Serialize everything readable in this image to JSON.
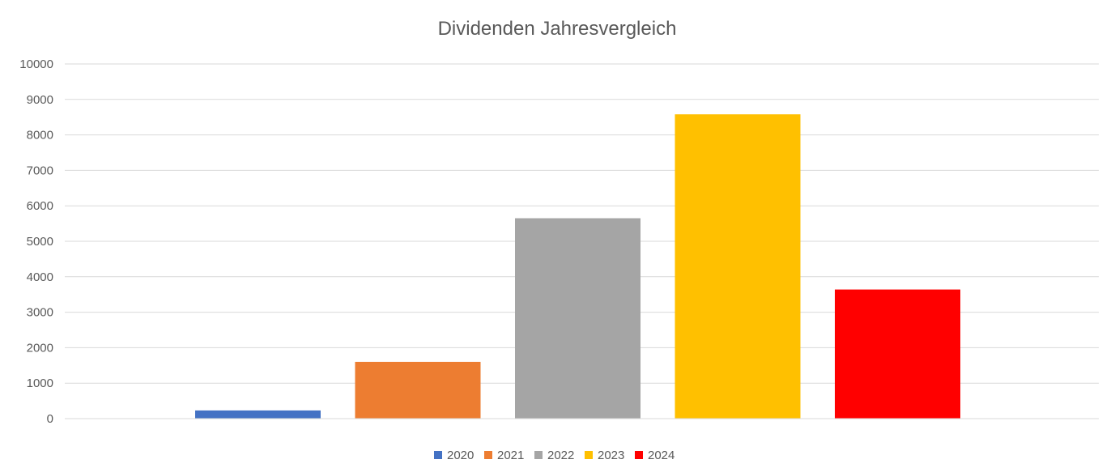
{
  "chart_data": {
    "type": "bar",
    "title": "Dividenden Jahresvergleich",
    "xlabel": "",
    "ylabel": "",
    "ylim": [
      0,
      10000
    ],
    "yticks": [
      0,
      1000,
      2000,
      3000,
      4000,
      5000,
      6000,
      7000,
      8000,
      9000,
      10000
    ],
    "grid": true,
    "legend_position": "bottom",
    "series": [
      {
        "name": "2020",
        "value": 230,
        "color": "#4472c4"
      },
      {
        "name": "2021",
        "value": 1600,
        "color": "#ed7d31"
      },
      {
        "name": "2022",
        "value": 5650,
        "color": "#a5a5a5"
      },
      {
        "name": "2023",
        "value": 8580,
        "color": "#ffc000"
      },
      {
        "name": "2024",
        "value": 3640,
        "color": "#ff0000"
      }
    ]
  }
}
